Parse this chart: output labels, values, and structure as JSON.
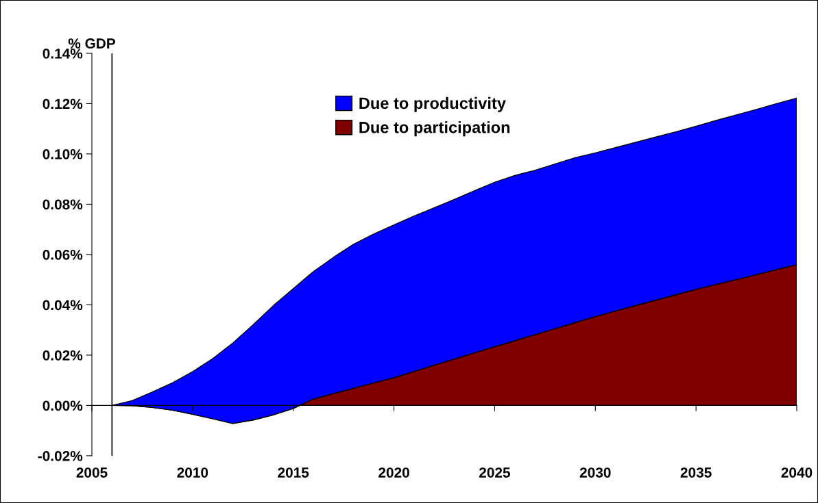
{
  "chart_data": {
    "type": "area",
    "stacked": true,
    "ylabel": "% GDP",
    "x": [
      2006,
      2007,
      2008,
      2009,
      2010,
      2011,
      2012,
      2013,
      2014,
      2015,
      2016,
      2017,
      2018,
      2019,
      2020,
      2021,
      2022,
      2023,
      2024,
      2025,
      2026,
      2027,
      2028,
      2029,
      2030,
      2031,
      2032,
      2033,
      2034,
      2035,
      2036,
      2037,
      2038,
      2039,
      2040
    ],
    "series": [
      {
        "name": "Due to participation",
        "color": "#800000",
        "values": [
          0,
          -0.0001,
          -0.0008,
          -0.0019,
          -0.0035,
          -0.0053,
          -0.0072,
          -0.0058,
          -0.0038,
          -0.0012,
          0.0025,
          0.0047,
          0.0068,
          0.0089,
          0.011,
          0.0135,
          0.016,
          0.0184,
          0.0209,
          0.0233,
          0.0257,
          0.0281,
          0.0305,
          0.0329,
          0.0353,
          0.0375,
          0.0397,
          0.0418,
          0.044,
          0.0461,
          0.0481,
          0.05,
          0.052,
          0.054,
          0.0559
        ]
      },
      {
        "name": "Due to productivity",
        "color": "#0000ff",
        "values": [
          0,
          0.002,
          0.0061,
          0.0109,
          0.0169,
          0.0239,
          0.032,
          0.0378,
          0.0434,
          0.0476,
          0.0507,
          0.0542,
          0.0573,
          0.0593,
          0.0608,
          0.0618,
          0.0626,
          0.0635,
          0.0645,
          0.0654,
          0.0657,
          0.0654,
          0.0655,
          0.0656,
          0.0651,
          0.065,
          0.0649,
          0.0649,
          0.0648,
          0.0649,
          0.0652,
          0.0655,
          0.0657,
          0.066,
          0.0663
        ]
      }
    ],
    "xlim": [
      2005,
      2040
    ],
    "xticks": [
      2005,
      2010,
      2015,
      2020,
      2025,
      2030,
      2035,
      2040
    ],
    "ylim": [
      -0.02,
      0.14
    ],
    "yticks": [
      {
        "value": -0.02,
        "label": "-0.02%"
      },
      {
        "value": 0,
        "label": "0.00%"
      },
      {
        "value": 0.02,
        "label": "0.02%"
      },
      {
        "value": 0.04,
        "label": "0.04%"
      },
      {
        "value": 0.06,
        "label": "0.06%"
      },
      {
        "value": 0.08,
        "label": "0.08%"
      },
      {
        "value": 0.1,
        "label": "0.10%"
      },
      {
        "value": 0.12,
        "label": "0.12%"
      },
      {
        "value": 0.14,
        "label": "0.14%"
      }
    ],
    "ref_lines": [
      {
        "axis": "x",
        "value": 2006,
        "color": "#000000"
      }
    ],
    "legend": "top"
  }
}
